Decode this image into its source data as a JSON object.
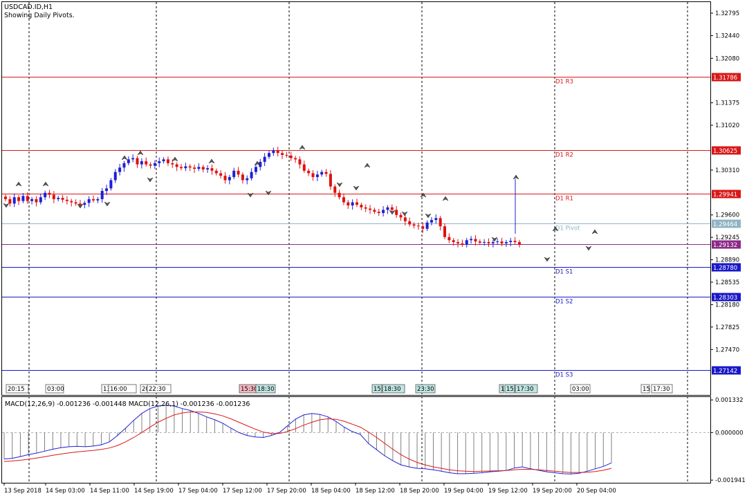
{
  "header": {
    "symbol": "USDCAD.ID,H1",
    "subtitle": "Showing Daily Pivots."
  },
  "colors": {
    "bull": "#1f1fd6",
    "bear": "#e01010",
    "resistance": "#d81818",
    "support": "#1818c8",
    "pivot": "#8fb4c4",
    "current": "#8b2a86",
    "macd_line": "#1f1fd6",
    "signal_line": "#d81818",
    "histogram": "#808080"
  },
  "chart_data": [
    {
      "type": "line",
      "panel": "price",
      "y_axis": {
        "min": 1.2675,
        "max": 1.3297,
        "ticks": [
          1.32795,
          1.3244,
          1.3208,
          1.31375,
          1.3102,
          1.3031,
          1.296,
          1.29245,
          1.2889,
          1.28535,
          1.2818,
          1.27825,
          1.2747
        ]
      },
      "levels": [
        {
          "name": "D1 R3",
          "value": 1.31786,
          "label": "1.31786",
          "role": "resistance"
        },
        {
          "name": "D1 R2",
          "value": 1.30625,
          "label": "1.30625",
          "role": "resistance"
        },
        {
          "name": "D1 R1",
          "value": 1.29941,
          "label": "1.29941",
          "role": "resistance"
        },
        {
          "name": "D1 Pivot",
          "value": 1.29464,
          "label": "1.29464",
          "role": "pivot"
        },
        {
          "name": "",
          "value": 1.29132,
          "label": "1.29132",
          "role": "current"
        },
        {
          "name": "D1 S1",
          "value": 1.2878,
          "label": "1.28780",
          "role": "support"
        },
        {
          "name": "D1 S2",
          "value": 1.28303,
          "label": "1.28303",
          "role": "support"
        },
        {
          "name": "D1 S3",
          "value": 1.27142,
          "label": "1.27142",
          "role": "support"
        }
      ],
      "x_labels": [
        "13 Sep 2018",
        "14 Sep 03:00",
        "14 Sep 11:00",
        "14 Sep 19:00",
        "17 Sep 04:00",
        "17 Sep 12:00",
        "17 Sep 20:00",
        "18 Sep 04:00",
        "18 Sep 12:00",
        "18 Sep 20:00",
        "19 Sep 04:00",
        "19 Sep 12:00",
        "19 Sep 20:00",
        "20 Sep 04:00"
      ],
      "time_tags": [
        {
          "text": "20:15",
          "color": "white"
        },
        {
          "text": "03:00",
          "color": "white"
        },
        {
          "text": "13:",
          "color": "white"
        },
        {
          "text": "16:00",
          "color": "white"
        },
        {
          "text": "20:",
          "color": "white"
        },
        {
          "text": "22:30",
          "color": "white"
        },
        {
          "text": "15:30",
          "color": "pink"
        },
        {
          "text": "18:30",
          "color": "teal"
        },
        {
          "text": "15:",
          "color": "teal"
        },
        {
          "text": "18:30",
          "color": "teal"
        },
        {
          "text": "23:30",
          "color": "teal"
        },
        {
          "text": "1",
          "color": "teal"
        },
        {
          "text": "15:",
          "color": "teal"
        },
        {
          "text": "17:30",
          "color": "teal"
        },
        {
          "text": "03:00",
          "color": "white"
        },
        {
          "text": "15",
          "color": "white"
        },
        {
          "text": "17:30",
          "color": "white"
        }
      ],
      "candles_close": [
        1.2985,
        1.2978,
        1.2988,
        1.2982,
        1.299,
        1.2982,
        1.2985,
        1.298,
        1.2988,
        1.2995,
        1.2992,
        1.2985,
        1.2987,
        1.2984,
        1.2982,
        1.298,
        1.2978,
        1.2976,
        1.2979,
        1.2985,
        1.2983,
        1.2985,
        1.2998,
        1.3002,
        1.3015,
        1.3028,
        1.3035,
        1.3042,
        1.3048,
        1.305,
        1.304,
        1.3045,
        1.304,
        1.3038,
        1.3042,
        1.3045,
        1.3048,
        1.3042,
        1.304,
        1.3036,
        1.3034,
        1.3037,
        1.3035,
        1.3033,
        1.3036,
        1.3032,
        1.3034,
        1.303,
        1.3026,
        1.3022,
        1.3015,
        1.302,
        1.303,
        1.3024,
        1.3015,
        1.3018,
        1.3028,
        1.3036,
        1.3044,
        1.3052,
        1.3058,
        1.3062,
        1.3058,
        1.3055,
        1.3054,
        1.305,
        1.3048,
        1.304,
        1.303,
        1.3026,
        1.302,
        1.3024,
        1.3028,
        1.3025,
        1.3005,
        1.2995,
        1.2988,
        1.298,
        1.2975,
        1.298,
        1.2976,
        1.2972,
        1.297,
        1.2968,
        1.2965,
        1.2963,
        1.2968,
        1.2972,
        1.2968,
        1.296,
        1.2956,
        1.295,
        1.2945,
        1.2943,
        1.2942,
        1.2938,
        1.2948,
        1.2952,
        1.2955,
        1.2942,
        1.2925,
        1.292,
        1.2917,
        1.2915,
        1.2913,
        1.292,
        1.2922,
        1.2918,
        1.2916,
        1.2917,
        1.2915,
        1.2917,
        1.2918,
        1.2915,
        1.2917,
        1.2919,
        1.2917,
        1.2913
      ]
    },
    {
      "type": "line",
      "panel": "macd",
      "title": "MACD(12,26,9) -0.001236 -0.001448 MACD(12,26,1) -0.001236 -0.001236",
      "y_axis": {
        "min": -0.00205,
        "max": 0.00145,
        "ticks": [
          0.001332,
          0.0,
          -0.001941
        ],
        "tick_labels": [
          "0.001332",
          "0.000000",
          "-0.001941"
        ]
      },
      "series": [
        {
          "name": "",
          "role": "macd",
          "values": [
            -0.00108,
            -0.00105,
            -0.00098,
            -0.0009,
            -0.00084,
            -0.00076,
            -0.00068,
            -0.00062,
            -0.00058,
            -0.00056,
            -0.00058,
            -0.00055,
            -0.0005,
            -0.00038,
            -0.00012,
            0.00018,
            0.0005,
            0.00078,
            0.00098,
            0.00108,
            0.00112,
            0.00108,
            0.00098,
            0.0009,
            0.00078,
            0.00064,
            0.00052,
            0.00038,
            0.00018,
            0.0,
            -0.00012,
            -0.00018,
            -0.0002,
            -0.00012,
            0.0,
            0.00028,
            0.00055,
            0.00072,
            0.00078,
            0.00074,
            0.00064,
            0.00045,
            0.00022,
            4e-05,
            -8e-05,
            -0.00045,
            -0.0007,
            -0.00095,
            -0.00115,
            -0.00132,
            -0.0014,
            -0.00146,
            -0.00148,
            -0.00152,
            -0.00158,
            -0.00164,
            -0.00168,
            -0.00168,
            -0.00166,
            -0.00164,
            -0.0016,
            -0.00158,
            -0.00155,
            -0.00145,
            -0.0014,
            -0.00148,
            -0.00154,
            -0.0016,
            -0.00164,
            -0.00168,
            -0.00169,
            -0.00166,
            -0.00158,
            -0.00148,
            -0.00138,
            -0.00124
          ]
        },
        {
          "name": "",
          "role": "signal",
          "values": [
            -0.00118,
            -0.00116,
            -0.00113,
            -0.00109,
            -0.00104,
            -0.00099,
            -0.00093,
            -0.00088,
            -0.00083,
            -0.00079,
            -0.00076,
            -0.00073,
            -0.00069,
            -0.00063,
            -0.00053,
            -0.00038,
            -0.0002,
            0.0,
            0.00022,
            0.00042,
            0.00058,
            0.00072,
            0.0008,
            0.00084,
            0.00084,
            0.00082,
            0.00076,
            0.00068,
            0.00056,
            0.00042,
            0.00028,
            0.00014,
            2e-05,
            -4e-05,
            -4e-05,
            4e-05,
            0.00016,
            0.0003,
            0.00042,
            0.00052,
            0.00056,
            0.00054,
            0.00046,
            0.00034,
            0.00022,
            2e-05,
            -0.0002,
            -0.00044,
            -0.00068,
            -0.0009,
            -0.00108,
            -0.00122,
            -0.00132,
            -0.0014,
            -0.00146,
            -0.00152,
            -0.00156,
            -0.00158,
            -0.00159,
            -0.00158,
            -0.00157,
            -0.00156,
            -0.00155,
            -0.00152,
            -0.0015,
            -0.0015,
            -0.00152,
            -0.00155,
            -0.00158,
            -0.00161,
            -0.00163,
            -0.00163,
            -0.00162,
            -0.00159,
            -0.00154,
            -0.00146
          ]
        }
      ]
    }
  ]
}
